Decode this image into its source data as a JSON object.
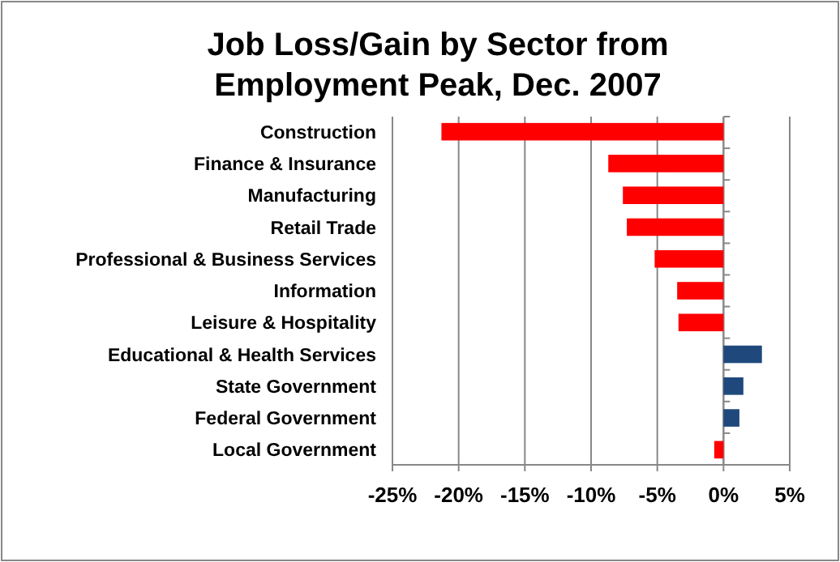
{
  "chart_data": {
    "type": "bar",
    "orientation": "horizontal",
    "title": "Job Loss/Gain by Sector from Employment Peak, Dec. 2007",
    "categories": [
      "Construction",
      "Finance & Insurance",
      "Manufacturing",
      "Retail Trade",
      "Professional & Business Services",
      "Information",
      "Leisure & Hospitality",
      "Educational & Health Services",
      "State Government",
      "Federal Government",
      "Local Government"
    ],
    "values": [
      -21.3,
      -8.7,
      -7.6,
      -7.3,
      -5.2,
      -3.5,
      -3.4,
      2.9,
      1.5,
      1.2,
      -0.7
    ],
    "colors": [
      "#ff0000",
      "#ff0000",
      "#ff0000",
      "#ff0000",
      "#ff0000",
      "#ff0000",
      "#ff0000",
      "#1f497d",
      "#1f497d",
      "#1f497d",
      "#ff0000"
    ],
    "xlim": [
      -25,
      5
    ],
    "xticks": [
      {
        "value": -25,
        "label": "-25%"
      },
      {
        "value": -20,
        "label": "-20%"
      },
      {
        "value": -15,
        "label": "-15%"
      },
      {
        "value": -10,
        "label": "-10%"
      },
      {
        "value": -5,
        "label": "-5%"
      },
      {
        "value": 0,
        "label": "0%"
      },
      {
        "value": 5,
        "label": "5%"
      }
    ],
    "grid": "x"
  }
}
